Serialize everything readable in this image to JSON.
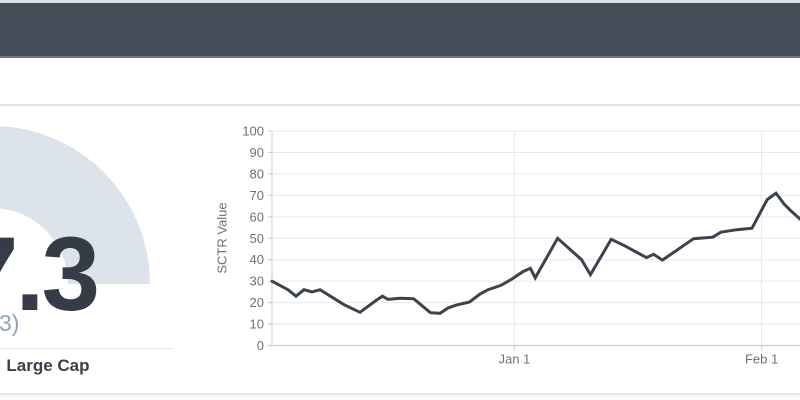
{
  "header": {
    "note_color": "#454c58"
  },
  "gauge": {
    "value_cropped": "7.3",
    "subtitle_visible": "3)",
    "segment_text": ": Large Cap",
    "arc_color": "#dde3ea",
    "value_color": "#363c47",
    "subtitle_color": "#94a4b8"
  },
  "chart_data": {
    "type": "line",
    "title": "",
    "xlabel": "",
    "ylabel": "SCTR Value",
    "ylim": [
      0,
      100
    ],
    "yticks": [
      0,
      10,
      20,
      30,
      40,
      50,
      60,
      70,
      80,
      90,
      100
    ],
    "xticks": [
      {
        "label": "Jan 1",
        "i": 30.3
      },
      {
        "label": "Feb 1",
        "i": 61.2
      }
    ],
    "grid": true,
    "legend": "none",
    "line_color": "#3b434d",
    "grid_color": "#e6e8ea",
    "axis_color": "#c8cdd3",
    "tick_text_color": "#69727c",
    "points": [
      [
        0,
        30
      ],
      [
        1,
        28
      ],
      [
        2,
        26
      ],
      [
        3,
        23
      ],
      [
        4,
        26
      ],
      [
        5,
        25
      ],
      [
        6,
        26
      ],
      [
        7.5,
        22.5
      ],
      [
        9,
        19
      ],
      [
        11,
        15.5
      ],
      [
        13,
        21
      ],
      [
        13.8,
        23
      ],
      [
        14.5,
        21.5
      ],
      [
        16,
        22
      ],
      [
        17.7,
        21.8
      ],
      [
        19.8,
        15.3
      ],
      [
        21,
        15
      ],
      [
        22,
        17.5
      ],
      [
        23,
        18.8
      ],
      [
        24.7,
        20.3
      ],
      [
        26,
        24
      ],
      [
        27,
        26
      ],
      [
        28.6,
        28
      ],
      [
        30,
        31
      ],
      [
        31.4,
        34.5
      ],
      [
        32.3,
        36
      ],
      [
        32.9,
        31.5
      ],
      [
        35.7,
        50
      ],
      [
        38.7,
        40
      ],
      [
        39.8,
        33
      ],
      [
        42.4,
        49.5
      ],
      [
        44.1,
        46.5
      ],
      [
        46.8,
        41
      ],
      [
        47.7,
        42.5
      ],
      [
        48.8,
        39.8
      ],
      [
        52.7,
        49.8
      ],
      [
        55.1,
        50.5
      ],
      [
        56.1,
        52.8
      ],
      [
        58.1,
        54
      ],
      [
        60,
        54.7
      ],
      [
        61.9,
        68
      ],
      [
        63,
        71
      ],
      [
        64,
        66
      ],
      [
        64.8,
        63
      ],
      [
        66.9,
        56
      ]
    ]
  }
}
